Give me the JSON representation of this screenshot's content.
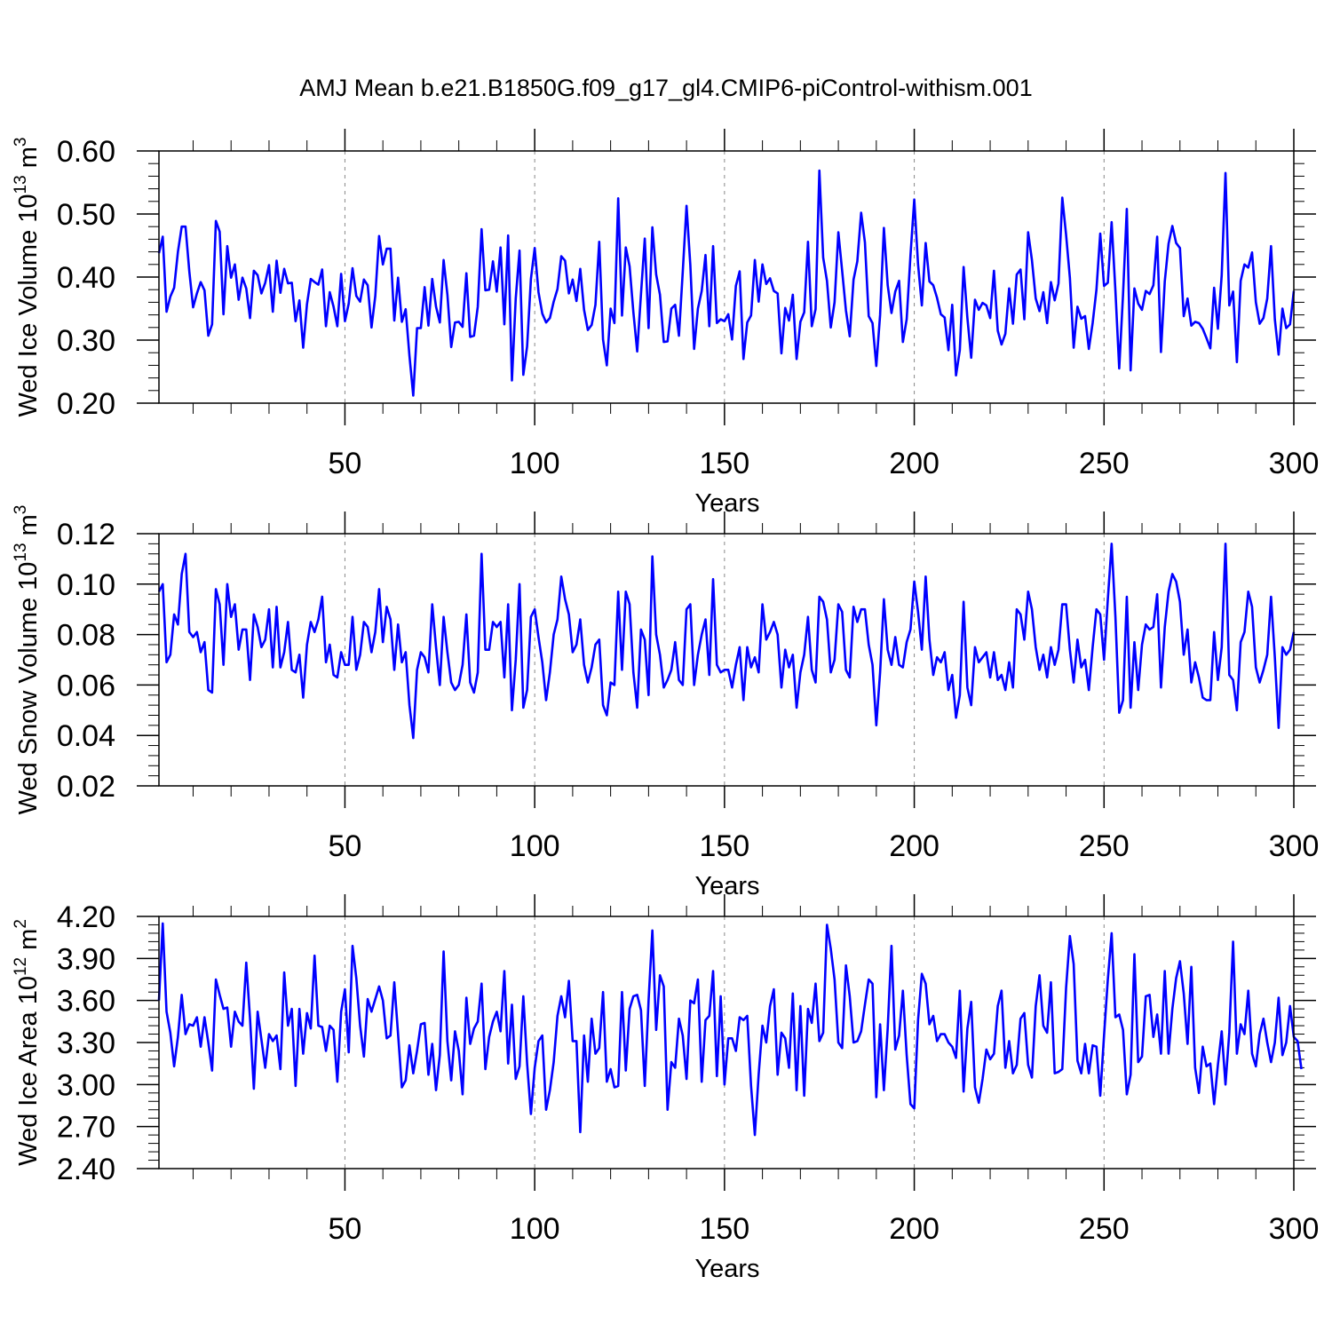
{
  "title": "AMJ Mean b.e21.B1850G.f09_g17_gl4.CMIP6-piControl-withism.001",
  "colors": {
    "line": "#0000ff",
    "axis": "#000000",
    "grid": "#888888"
  },
  "chart_data": [
    {
      "type": "line",
      "ylabel": "Wed Ice Volume 10",
      "ylabel_exp": "13",
      "ylabel_unit": " m",
      "ylabel_unit_exp": "3",
      "xlabel": "Years",
      "xlim": [
        1,
        300
      ],
      "ylim": [
        0.2,
        0.6
      ],
      "yticks": [
        0.2,
        0.3,
        0.4,
        0.5,
        0.6
      ],
      "ytick_labels": [
        "0.20",
        "0.30",
        "0.40",
        "0.50",
        "0.60"
      ],
      "xticks": [
        50,
        100,
        150,
        200,
        250,
        300
      ],
      "xtick_labels": [
        "50",
        "100",
        "150",
        "200",
        "250",
        "300"
      ],
      "grid": "vertical dashed lines at 50, 100, 150, 200, 250",
      "series": [
        {
          "values": [
            0.438,
            0.464,
            0.345,
            0.369,
            0.383,
            0.44,
            0.48,
            0.48,
            0.409,
            0.352,
            0.374,
            0.392,
            0.379,
            0.307,
            0.325,
            0.489,
            0.472,
            0.341,
            0.449,
            0.399,
            0.42,
            0.364,
            0.399,
            0.382,
            0.335,
            0.41,
            0.403,
            0.374,
            0.391,
            0.419,
            0.345,
            0.426,
            0.375,
            0.413,
            0.39,
            0.391,
            0.33,
            0.363,
            0.288,
            0.357,
            0.397,
            0.392,
            0.388,
            0.412,
            0.322,
            0.376,
            0.353,
            0.322,
            0.405,
            0.33,
            0.358,
            0.414,
            0.37,
            0.361,
            0.396,
            0.387,
            0.32,
            0.37,
            0.465,
            0.42,
            0.445,
            0.445,
            0.331,
            0.399,
            0.329,
            0.349,
            0.275,
            0.212,
            0.319,
            0.319,
            0.384,
            0.323,
            0.397,
            0.353,
            0.328,
            0.427,
            0.372,
            0.289,
            0.328,
            0.329,
            0.321,
            0.406,
            0.305,
            0.307,
            0.353,
            0.476,
            0.379,
            0.38,
            0.425,
            0.377,
            0.447,
            0.325,
            0.466,
            0.236,
            0.366,
            0.442,
            0.245,
            0.29,
            0.397,
            0.446,
            0.376,
            0.342,
            0.328,
            0.335,
            0.361,
            0.381,
            0.433,
            0.426,
            0.374,
            0.396,
            0.362,
            0.413,
            0.348,
            0.316,
            0.324,
            0.356,
            0.456,
            0.301,
            0.26,
            0.35,
            0.327,
            0.525,
            0.339,
            0.447,
            0.417,
            0.344,
            0.282,
            0.373,
            0.461,
            0.319,
            0.479,
            0.404,
            0.372,
            0.297,
            0.298,
            0.35,
            0.356,
            0.307,
            0.408,
            0.513,
            0.419,
            0.286,
            0.35,
            0.378,
            0.435,
            0.322,
            0.449,
            0.327,
            0.333,
            0.33,
            0.341,
            0.301,
            0.386,
            0.409,
            0.27,
            0.328,
            0.339,
            0.427,
            0.361,
            0.42,
            0.389,
            0.398,
            0.378,
            0.374,
            0.279,
            0.351,
            0.331,
            0.372,
            0.27,
            0.329,
            0.344,
            0.456,
            0.322,
            0.349,
            0.569,
            0.431,
            0.394,
            0.32,
            0.36,
            0.471,
            0.41,
            0.347,
            0.306,
            0.396,
            0.425,
            0.502,
            0.455,
            0.338,
            0.327,
            0.259,
            0.34,
            0.478,
            0.387,
            0.343,
            0.377,
            0.394,
            0.297,
            0.333,
            0.434,
            0.523,
            0.42,
            0.355,
            0.454,
            0.393,
            0.387,
            0.367,
            0.341,
            0.336,
            0.284,
            0.356,
            0.244,
            0.284,
            0.416,
            0.335,
            0.272,
            0.364,
            0.348,
            0.359,
            0.355,
            0.335,
            0.41,
            0.315,
            0.293,
            0.31,
            0.382,
            0.326,
            0.404,
            0.412,
            0.333,
            0.471,
            0.427,
            0.366,
            0.346,
            0.376,
            0.327,
            0.392,
            0.363,
            0.39,
            0.526,
            0.467,
            0.399,
            0.288,
            0.353,
            0.334,
            0.338,
            0.286,
            0.327,
            0.38,
            0.469,
            0.386,
            0.391,
            0.487,
            0.378,
            0.255,
            0.372,
            0.508,
            0.252,
            0.382,
            0.358,
            0.348,
            0.378,
            0.373,
            0.387,
            0.464,
            0.281,
            0.393,
            0.453,
            0.481,
            0.454,
            0.446,
            0.338,
            0.366,
            0.323,
            0.329,
            0.327,
            0.318,
            0.303,
            0.287,
            0.383,
            0.318,
            0.403,
            0.565,
            0.355,
            0.377,
            0.265,
            0.394,
            0.42,
            0.415,
            0.439,
            0.36,
            0.326,
            0.335,
            0.366,
            0.449,
            0.333,
            0.277,
            0.35,
            0.319,
            0.325,
            0.378
          ]
        }
      ]
    },
    {
      "type": "line",
      "ylabel": "Wed Snow Volume 10",
      "ylabel_exp": "13",
      "ylabel_unit": " m",
      "ylabel_unit_exp": "3",
      "xlabel": "Years",
      "xlim": [
        1,
        300
      ],
      "ylim": [
        0.02,
        0.12
      ],
      "yticks": [
        0.02,
        0.04,
        0.06,
        0.08,
        0.1,
        0.12
      ],
      "ytick_labels": [
        "0.02",
        "0.04",
        "0.06",
        "0.08",
        "0.10",
        "0.12"
      ],
      "xticks": [
        50,
        100,
        150,
        200,
        250,
        300
      ],
      "xtick_labels": [
        "50",
        "100",
        "150",
        "200",
        "250",
        "300"
      ],
      "grid": "vertical dashed lines at 50, 100, 150, 200, 250",
      "series": [
        {
          "values": [
            0.097,
            0.1,
            0.069,
            0.072,
            0.088,
            0.084,
            0.104,
            0.112,
            0.081,
            0.079,
            0.081,
            0.073,
            0.077,
            0.058,
            0.057,
            0.098,
            0.092,
            0.068,
            0.1,
            0.087,
            0.092,
            0.074,
            0.082,
            0.082,
            0.062,
            0.088,
            0.083,
            0.075,
            0.078,
            0.09,
            0.067,
            0.091,
            0.067,
            0.073,
            0.085,
            0.066,
            0.065,
            0.072,
            0.055,
            0.076,
            0.085,
            0.081,
            0.086,
            0.095,
            0.069,
            0.076,
            0.064,
            0.063,
            0.073,
            0.068,
            0.068,
            0.087,
            0.066,
            0.072,
            0.085,
            0.083,
            0.073,
            0.081,
            0.098,
            0.077,
            0.091,
            0.086,
            0.066,
            0.084,
            0.069,
            0.073,
            0.052,
            0.039,
            0.066,
            0.073,
            0.071,
            0.065,
            0.092,
            0.075,
            0.06,
            0.087,
            0.073,
            0.061,
            0.058,
            0.06,
            0.068,
            0.088,
            0.061,
            0.057,
            0.065,
            0.112,
            0.074,
            0.074,
            0.085,
            0.083,
            0.085,
            0.063,
            0.092,
            0.05,
            0.07,
            0.1,
            0.051,
            0.058,
            0.087,
            0.09,
            0.079,
            0.069,
            0.054,
            0.065,
            0.08,
            0.086,
            0.103,
            0.094,
            0.088,
            0.073,
            0.076,
            0.086,
            0.068,
            0.061,
            0.067,
            0.076,
            0.078,
            0.052,
            0.048,
            0.061,
            0.06,
            0.097,
            0.066,
            0.097,
            0.092,
            0.065,
            0.051,
            0.082,
            0.078,
            0.056,
            0.111,
            0.08,
            0.072,
            0.059,
            0.062,
            0.066,
            0.077,
            0.062,
            0.06,
            0.09,
            0.092,
            0.06,
            0.072,
            0.08,
            0.086,
            0.064,
            0.102,
            0.068,
            0.065,
            0.066,
            0.066,
            0.059,
            0.068,
            0.075,
            0.054,
            0.075,
            0.067,
            0.071,
            0.065,
            0.092,
            0.078,
            0.081,
            0.085,
            0.08,
            0.059,
            0.074,
            0.067,
            0.072,
            0.051,
            0.065,
            0.072,
            0.087,
            0.066,
            0.061,
            0.095,
            0.093,
            0.086,
            0.065,
            0.07,
            0.092,
            0.089,
            0.066,
            0.063,
            0.091,
            0.085,
            0.09,
            0.09,
            0.076,
            0.068,
            0.044,
            0.065,
            0.094,
            0.074,
            0.068,
            0.079,
            0.068,
            0.067,
            0.077,
            0.082,
            0.101,
            0.089,
            0.074,
            0.103,
            0.078,
            0.064,
            0.071,
            0.069,
            0.073,
            0.058,
            0.064,
            0.047,
            0.056,
            0.093,
            0.059,
            0.052,
            0.075,
            0.069,
            0.071,
            0.073,
            0.063,
            0.073,
            0.062,
            0.064,
            0.058,
            0.069,
            0.059,
            0.09,
            0.088,
            0.078,
            0.097,
            0.09,
            0.075,
            0.066,
            0.072,
            0.063,
            0.075,
            0.068,
            0.074,
            0.092,
            0.092,
            0.074,
            0.061,
            0.078,
            0.067,
            0.07,
            0.058,
            0.075,
            0.09,
            0.088,
            0.07,
            0.094,
            0.116,
            0.087,
            0.049,
            0.054,
            0.095,
            0.051,
            0.077,
            0.058,
            0.076,
            0.084,
            0.082,
            0.083,
            0.096,
            0.059,
            0.083,
            0.097,
            0.104,
            0.101,
            0.093,
            0.072,
            0.082,
            0.061,
            0.069,
            0.063,
            0.055,
            0.054,
            0.054,
            0.081,
            0.062,
            0.075,
            0.116,
            0.064,
            0.062,
            0.05,
            0.077,
            0.081,
            0.097,
            0.091,
            0.067,
            0.061,
            0.066,
            0.072,
            0.095,
            0.071,
            0.043,
            0.075,
            0.072,
            0.074,
            0.081
          ]
        }
      ]
    },
    {
      "type": "line",
      "ylabel": "Wed Ice Area 10",
      "ylabel_exp": "12",
      "ylabel_unit": " m",
      "ylabel_unit_exp": "2",
      "xlabel": "Years",
      "xlim": [
        1,
        300
      ],
      "ylim": [
        2.4,
        4.2
      ],
      "yticks": [
        2.4,
        2.7,
        3.0,
        3.3,
        3.6,
        3.9,
        4.2
      ],
      "ytick_labels": [
        "2.40",
        "2.70",
        "3.00",
        "3.30",
        "3.60",
        "3.90",
        "4.20"
      ],
      "xticks": [
        50,
        100,
        150,
        200,
        250,
        300
      ],
      "xtick_labels": [
        "50",
        "100",
        "150",
        "200",
        "250",
        "300"
      ],
      "grid": "vertical dashed lines at 50, 100, 150, 200, 250",
      "series": [
        {
          "values": [
            3.6,
            4.15,
            3.52,
            3.37,
            3.13,
            3.34,
            3.64,
            3.36,
            3.43,
            3.42,
            3.48,
            3.27,
            3.48,
            3.3,
            3.1,
            3.75,
            3.64,
            3.54,
            3.55,
            3.27,
            3.52,
            3.45,
            3.42,
            3.87,
            3.47,
            2.97,
            3.52,
            3.32,
            3.12,
            3.36,
            3.31,
            3.35,
            3.11,
            3.8,
            3.42,
            3.54,
            2.99,
            3.54,
            3.22,
            3.51,
            3.4,
            3.92,
            3.42,
            3.41,
            3.24,
            3.42,
            3.39,
            3.02,
            3.52,
            3.68,
            3.23,
            3.99,
            3.76,
            3.42,
            3.2,
            3.61,
            3.52,
            3.61,
            3.7,
            3.6,
            3.33,
            3.35,
            3.73,
            3.36,
            2.98,
            3.03,
            3.28,
            3.08,
            3.24,
            3.43,
            3.44,
            3.07,
            3.29,
            2.96,
            3.21,
            3.95,
            3.31,
            3.03,
            3.38,
            3.24,
            2.93,
            3.62,
            3.29,
            3.4,
            3.45,
            3.72,
            3.11,
            3.34,
            3.45,
            3.52,
            3.38,
            3.81,
            3.15,
            3.57,
            3.04,
            3.13,
            3.63,
            3.15,
            2.79,
            3.12,
            3.31,
            3.35,
            2.82,
            2.96,
            3.16,
            3.49,
            3.63,
            3.48,
            3.74,
            3.31,
            3.31,
            2.66,
            3.35,
            3.02,
            3.47,
            3.22,
            3.26,
            3.66,
            3.02,
            3.11,
            2.98,
            2.99,
            3.66,
            3.1,
            3.54,
            3.63,
            3.64,
            3.53,
            2.99,
            3.6,
            4.1,
            3.39,
            3.78,
            3.7,
            2.82,
            3.16,
            3.12,
            3.47,
            3.35,
            3.04,
            3.6,
            3.58,
            3.75,
            3.02,
            3.46,
            3.49,
            3.81,
            3.06,
            3.63,
            3.0,
            3.33,
            3.33,
            3.24,
            3.48,
            3.46,
            3.49,
            2.99,
            2.64,
            3.07,
            3.42,
            3.3,
            3.56,
            3.68,
            3.07,
            3.37,
            3.33,
            3.12,
            3.65,
            2.96,
            3.56,
            2.92,
            3.54,
            3.44,
            3.72,
            3.31,
            3.37,
            4.14,
            3.97,
            3.75,
            3.3,
            3.26,
            3.85,
            3.63,
            3.3,
            3.31,
            3.38,
            3.57,
            3.75,
            3.72,
            2.91,
            3.43,
            2.96,
            3.4,
            3.99,
            3.25,
            3.35,
            3.67,
            3.21,
            2.86,
            2.83,
            3.46,
            3.79,
            3.72,
            3.43,
            3.49,
            3.31,
            3.36,
            3.36,
            3.3,
            3.27,
            3.19,
            3.67,
            2.95,
            3.4,
            3.59,
            2.98,
            2.87,
            3.04,
            3.25,
            3.18,
            3.22,
            3.56,
            3.67,
            3.12,
            3.31,
            3.08,
            3.14,
            3.47,
            3.51,
            3.14,
            3.05,
            3.56,
            3.78,
            3.42,
            3.37,
            3.73,
            3.08,
            3.09,
            3.11,
            3.69,
            4.06,
            3.86,
            3.17,
            3.08,
            3.29,
            3.08,
            3.28,
            3.27,
            2.92,
            3.35,
            3.75,
            4.08,
            3.48,
            3.5,
            3.39,
            2.93,
            3.07,
            3.93,
            3.16,
            3.2,
            3.63,
            3.64,
            3.34,
            3.5,
            3.22,
            3.81,
            3.22,
            3.54,
            3.76,
            3.88,
            3.65,
            3.29,
            3.84,
            3.12,
            2.94,
            3.27,
            3.13,
            3.15,
            2.86,
            3.14,
            3.38,
            3.0,
            3.37,
            4.02,
            3.22,
            3.43,
            3.36,
            3.67,
            3.22,
            3.13,
            3.36,
            3.47,
            3.3,
            3.16,
            3.3,
            3.62,
            3.21,
            3.3,
            3.56,
            3.34,
            3.31,
            3.11
          ]
        }
      ]
    }
  ]
}
